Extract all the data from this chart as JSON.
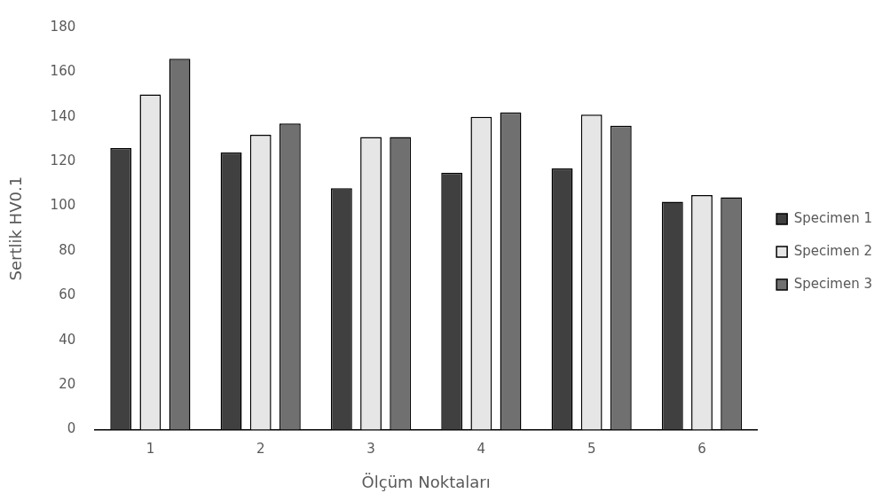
{
  "chart_data": {
    "type": "bar",
    "xlabel": "Ölçüm Noktaları",
    "ylabel": "Sertlik HV0.1",
    "categories": [
      "1",
      "2",
      "3",
      "4",
      "5",
      "6"
    ],
    "series": [
      {
        "name": "Specimen 1",
        "color": "#404040",
        "values": [
          126,
          124,
          108,
          115,
          117,
          102
        ]
      },
      {
        "name": "Specimen 2",
        "color": "#e6e6e6",
        "values": [
          150,
          132,
          131,
          140,
          141,
          105
        ]
      },
      {
        "name": "Specimen 3",
        "color": "#707070",
        "values": [
          166,
          137,
          131,
          142,
          136,
          104
        ]
      }
    ],
    "ylim": [
      0,
      180
    ],
    "yticks": [
      0,
      20,
      40,
      60,
      80,
      100,
      120,
      140,
      160,
      180
    ],
    "grid": false,
    "legend": "right"
  }
}
